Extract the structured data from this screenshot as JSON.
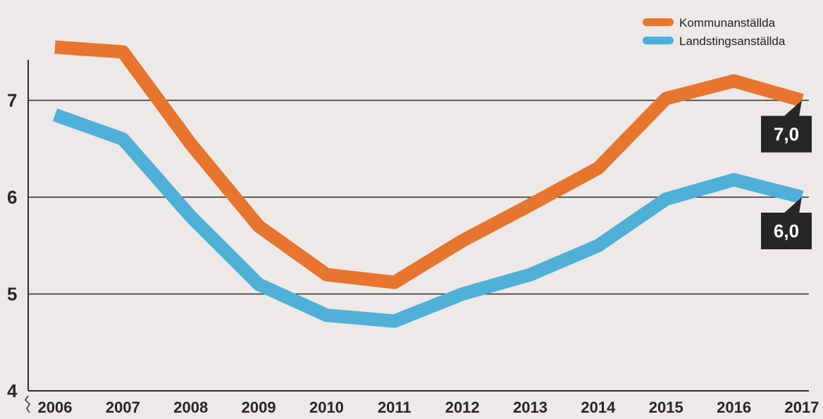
{
  "chart_data": {
    "type": "line",
    "x": [
      2006,
      2007,
      2008,
      2009,
      2010,
      2011,
      2012,
      2013,
      2014,
      2015,
      2016,
      2017
    ],
    "xlabels": [
      "2006",
      "2007",
      "2008",
      "2009",
      "2010",
      "2011",
      "2012",
      "2013",
      "2014",
      "2015",
      "2016",
      "2017"
    ],
    "yticks": [
      "4",
      "5",
      "6",
      "7"
    ],
    "ylim": [
      4,
      7.6
    ],
    "grid": "horizontal",
    "legend_position": "top-right",
    "series": [
      {
        "name": "Kommunanställda",
        "color": "#e8752f",
        "values": [
          7.55,
          7.5,
          6.55,
          5.7,
          5.2,
          5.12,
          5.55,
          5.92,
          6.3,
          7.02,
          7.2,
          7.0
        ],
        "end_label": "7,0"
      },
      {
        "name": "Landstingsanställda",
        "color": "#4fafd6",
        "values": [
          6.85,
          6.6,
          5.8,
          5.1,
          4.78,
          4.72,
          5.0,
          5.2,
          5.5,
          5.98,
          6.18,
          6.0
        ],
        "end_label": "6,0"
      }
    ]
  }
}
